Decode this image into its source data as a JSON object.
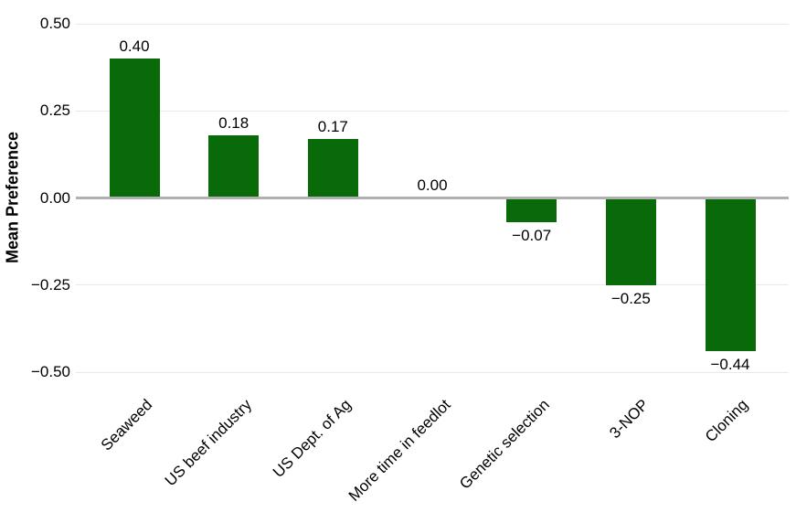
{
  "chart_data": {
    "type": "bar",
    "title": "",
    "xlabel": "",
    "ylabel": "Mean Preference",
    "categories": [
      "Seaweed",
      "US beef industry",
      "US Dept. of Ag",
      "More time in feedlot",
      "Genetic selection",
      "3-NOP",
      "Cloning"
    ],
    "values": [
      0.4,
      0.18,
      0.17,
      0.0,
      -0.07,
      -0.25,
      -0.44
    ],
    "value_labels": [
      "0.40",
      "0.18",
      "0.17",
      "0.00",
      "−0.07",
      "−0.25",
      "−0.44"
    ],
    "ylim": [
      -0.5,
      0.5
    ],
    "yticks": [
      0.5,
      0.25,
      0.0,
      -0.25,
      -0.5
    ],
    "ytick_labels": [
      "0.50",
      "0.25",
      "0.00",
      "−0.25",
      "−0.50"
    ],
    "grid": "horizontal-only",
    "legend": "none",
    "bar_color": "#086a08",
    "zero_line_color": "#b0b0b0",
    "gridline_color": "#e9e9e9",
    "label_color": "#000000",
    "background_color": "#ffffff"
  }
}
